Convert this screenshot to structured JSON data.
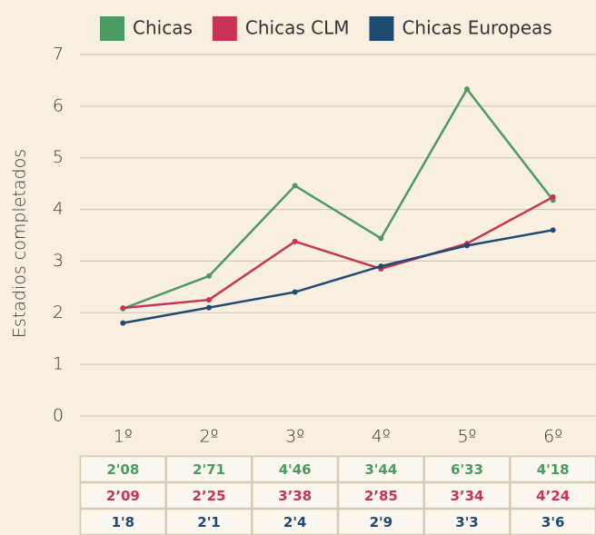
{
  "chart_data": {
    "type": "line",
    "y_label": "Estadios completados",
    "categories": [
      "1º",
      "2º",
      "3º",
      "4º",
      "5º",
      "6º"
    ],
    "series": [
      {
        "name": "Chicas",
        "color": "#4a9a62",
        "values": [
          2.08,
          2.71,
          4.46,
          3.44,
          6.33,
          4.18
        ],
        "value_labels": [
          "2'08",
          "2'71",
          "4'46",
          "3'44",
          "6'33",
          "4'18"
        ]
      },
      {
        "name": "Chicas CLM",
        "color": "#c83458",
        "values": [
          2.09,
          2.25,
          3.38,
          2.85,
          3.34,
          4.24
        ],
        "value_labels": [
          "2’09",
          "2’25",
          "3’38",
          "2’85",
          "3’34",
          "4’24"
        ]
      },
      {
        "name": "Chicas Europeas",
        "color": "#1f4a72",
        "values": [
          1.8,
          2.1,
          2.4,
          2.9,
          3.3,
          3.6
        ],
        "value_labels": [
          "1'8",
          "2'1",
          "2'4",
          "2'9",
          "3'3",
          "3'6"
        ]
      }
    ],
    "ylim": [
      0,
      7
    ],
    "yticks": [
      0,
      1,
      2,
      3,
      4,
      5,
      6,
      7
    ],
    "grid": true,
    "legend": "top"
  }
}
